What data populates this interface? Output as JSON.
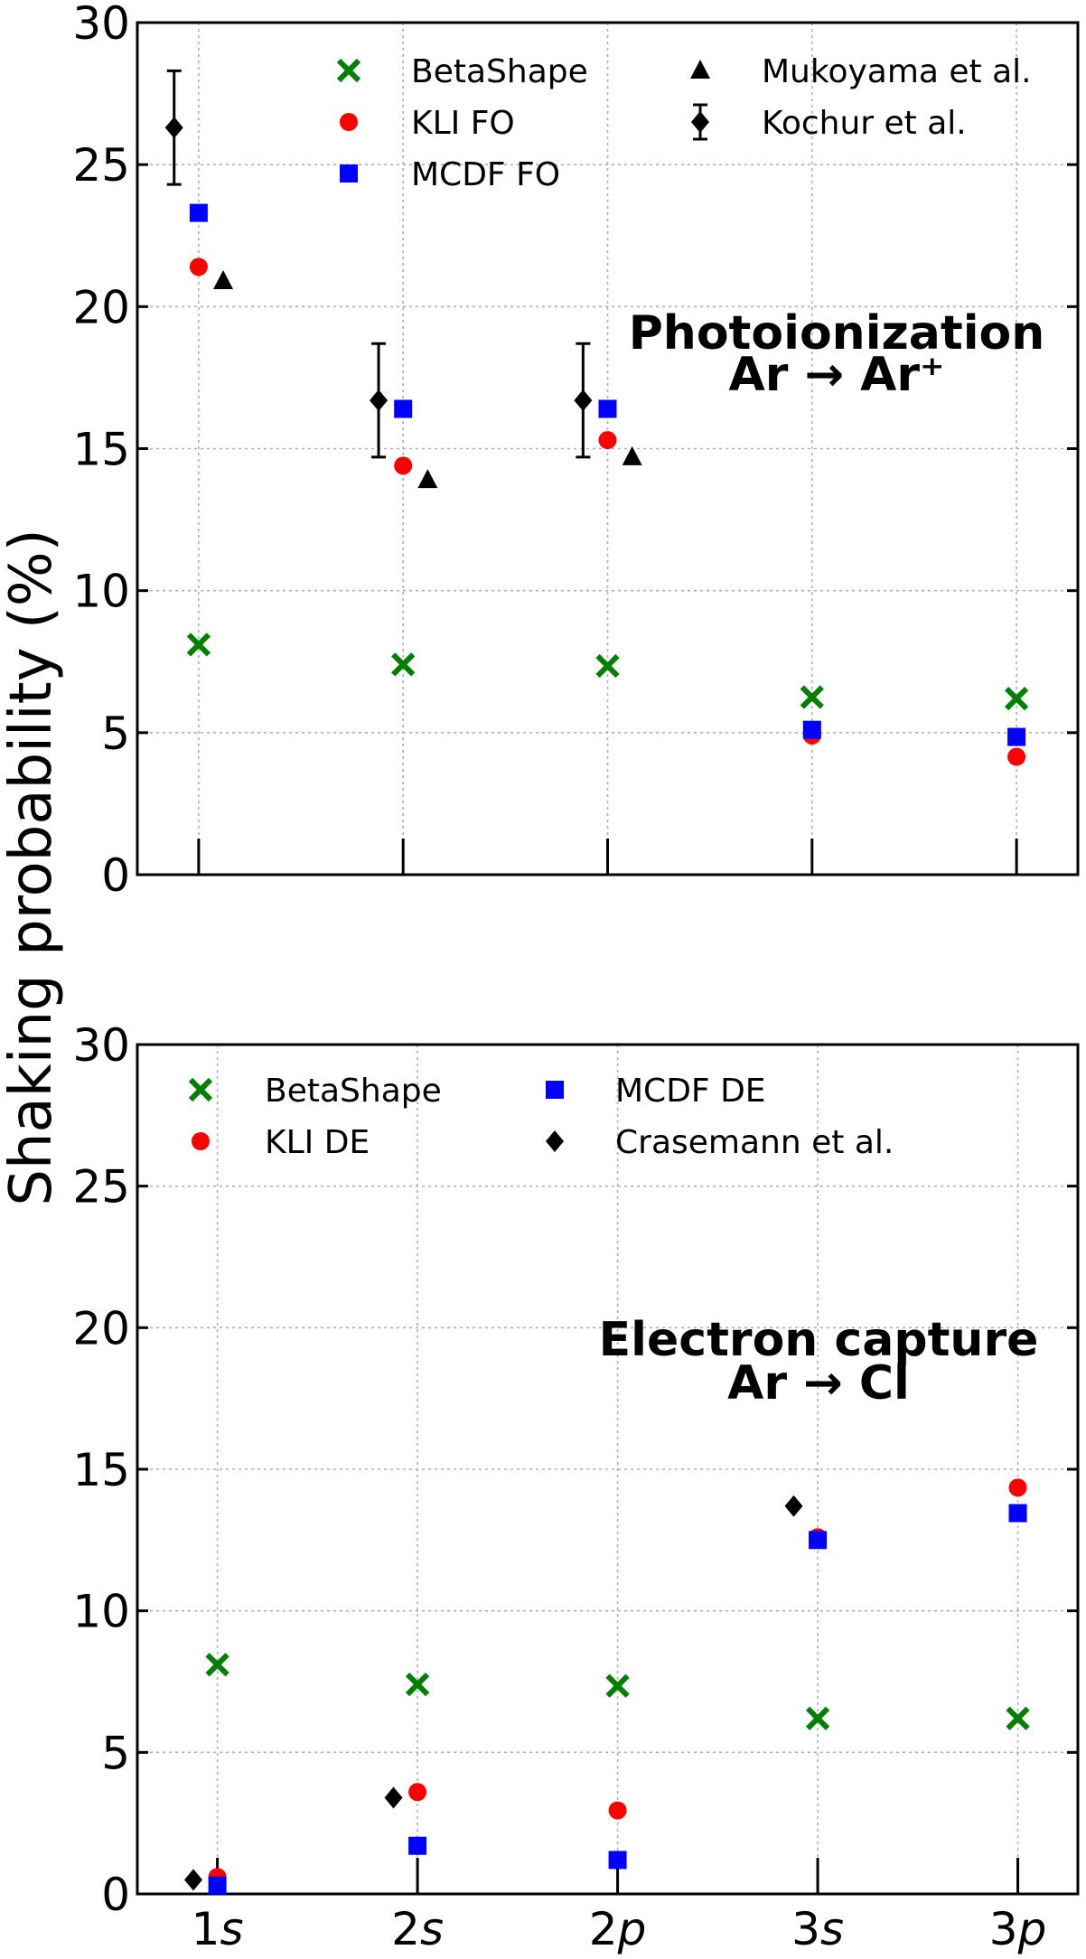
{
  "ylabel": "Shaking probability (%)",
  "chart_data": [
    {
      "type": "scatter",
      "title": "",
      "annotation": [
        "Photoionization",
        "Ar → Ar⁺"
      ],
      "categories": [
        "1s",
        "2s",
        "2p",
        "3s",
        "3p"
      ],
      "ylim": [
        0,
        30
      ],
      "yticks": [
        0,
        5,
        10,
        15,
        20,
        25,
        30
      ],
      "grid": true,
      "legend_columns": [
        [
          "BetaShape",
          "KLI FO",
          "MCDF FO"
        ],
        [
          "Mukoyama et al.",
          "Kochur et al."
        ]
      ],
      "series": [
        {
          "name": "BetaShape",
          "marker": "x",
          "color": "#008000",
          "offset": 0,
          "values": [
            8.1,
            7.4,
            7.35,
            6.25,
            6.2
          ]
        },
        {
          "name": "KLI FO",
          "marker": "circle",
          "color": "#ff0000",
          "offset": 0,
          "values": [
            21.4,
            14.4,
            15.3,
            4.9,
            4.15
          ]
        },
        {
          "name": "MCDF FO",
          "marker": "square",
          "color": "#0000ff",
          "offset": 0,
          "values": [
            23.3,
            16.4,
            16.4,
            5.1,
            4.85
          ]
        },
        {
          "name": "Mukoyama et al.",
          "marker": "triangle",
          "color": "#000000",
          "offset": 0.12,
          "values": [
            20.9,
            13.9,
            14.7,
            null,
            null
          ]
        },
        {
          "name": "Kochur et al.",
          "marker": "diamond",
          "color": "#000000",
          "offset": -0.12,
          "values": [
            26.3,
            16.7,
            16.7,
            null,
            null
          ],
          "errors": [
            2.0,
            2.0,
            2.0,
            null,
            null
          ]
        }
      ]
    },
    {
      "type": "scatter",
      "title": "",
      "annotation": [
        "Electron capture",
        "Ar → Cl"
      ],
      "categories": [
        "1s",
        "2s",
        "2p",
        "3s",
        "3p"
      ],
      "xtick_style": [
        "1",
        "s",
        "2",
        "s",
        "2",
        "p",
        "3",
        "s",
        "3",
        "p"
      ],
      "ylim": [
        0,
        30
      ],
      "yticks": [
        0,
        5,
        10,
        15,
        20,
        25,
        30
      ],
      "grid": true,
      "legend_columns": [
        [
          "BetaShape",
          "KLI DE"
        ],
        [
          "MCDF DE",
          "Crasemann et al."
        ]
      ],
      "series": [
        {
          "name": "BetaShape",
          "marker": "x",
          "color": "#008000",
          "offset": 0,
          "values": [
            8.1,
            7.4,
            7.35,
            6.2,
            6.2
          ]
        },
        {
          "name": "KLI DE",
          "marker": "circle",
          "color": "#ff0000",
          "offset": 0,
          "values": [
            0.6,
            3.6,
            2.95,
            12.6,
            14.35
          ]
        },
        {
          "name": "MCDF DE",
          "marker": "square",
          "color": "#0000ff",
          "offset": 0,
          "values": [
            0.3,
            1.7,
            1.2,
            12.5,
            13.45
          ]
        },
        {
          "name": "Crasemann et al.",
          "marker": "diamond",
          "color": "#000000",
          "offset": -0.12,
          "values": [
            0.5,
            3.4,
            null,
            13.7,
            null
          ]
        }
      ]
    }
  ]
}
